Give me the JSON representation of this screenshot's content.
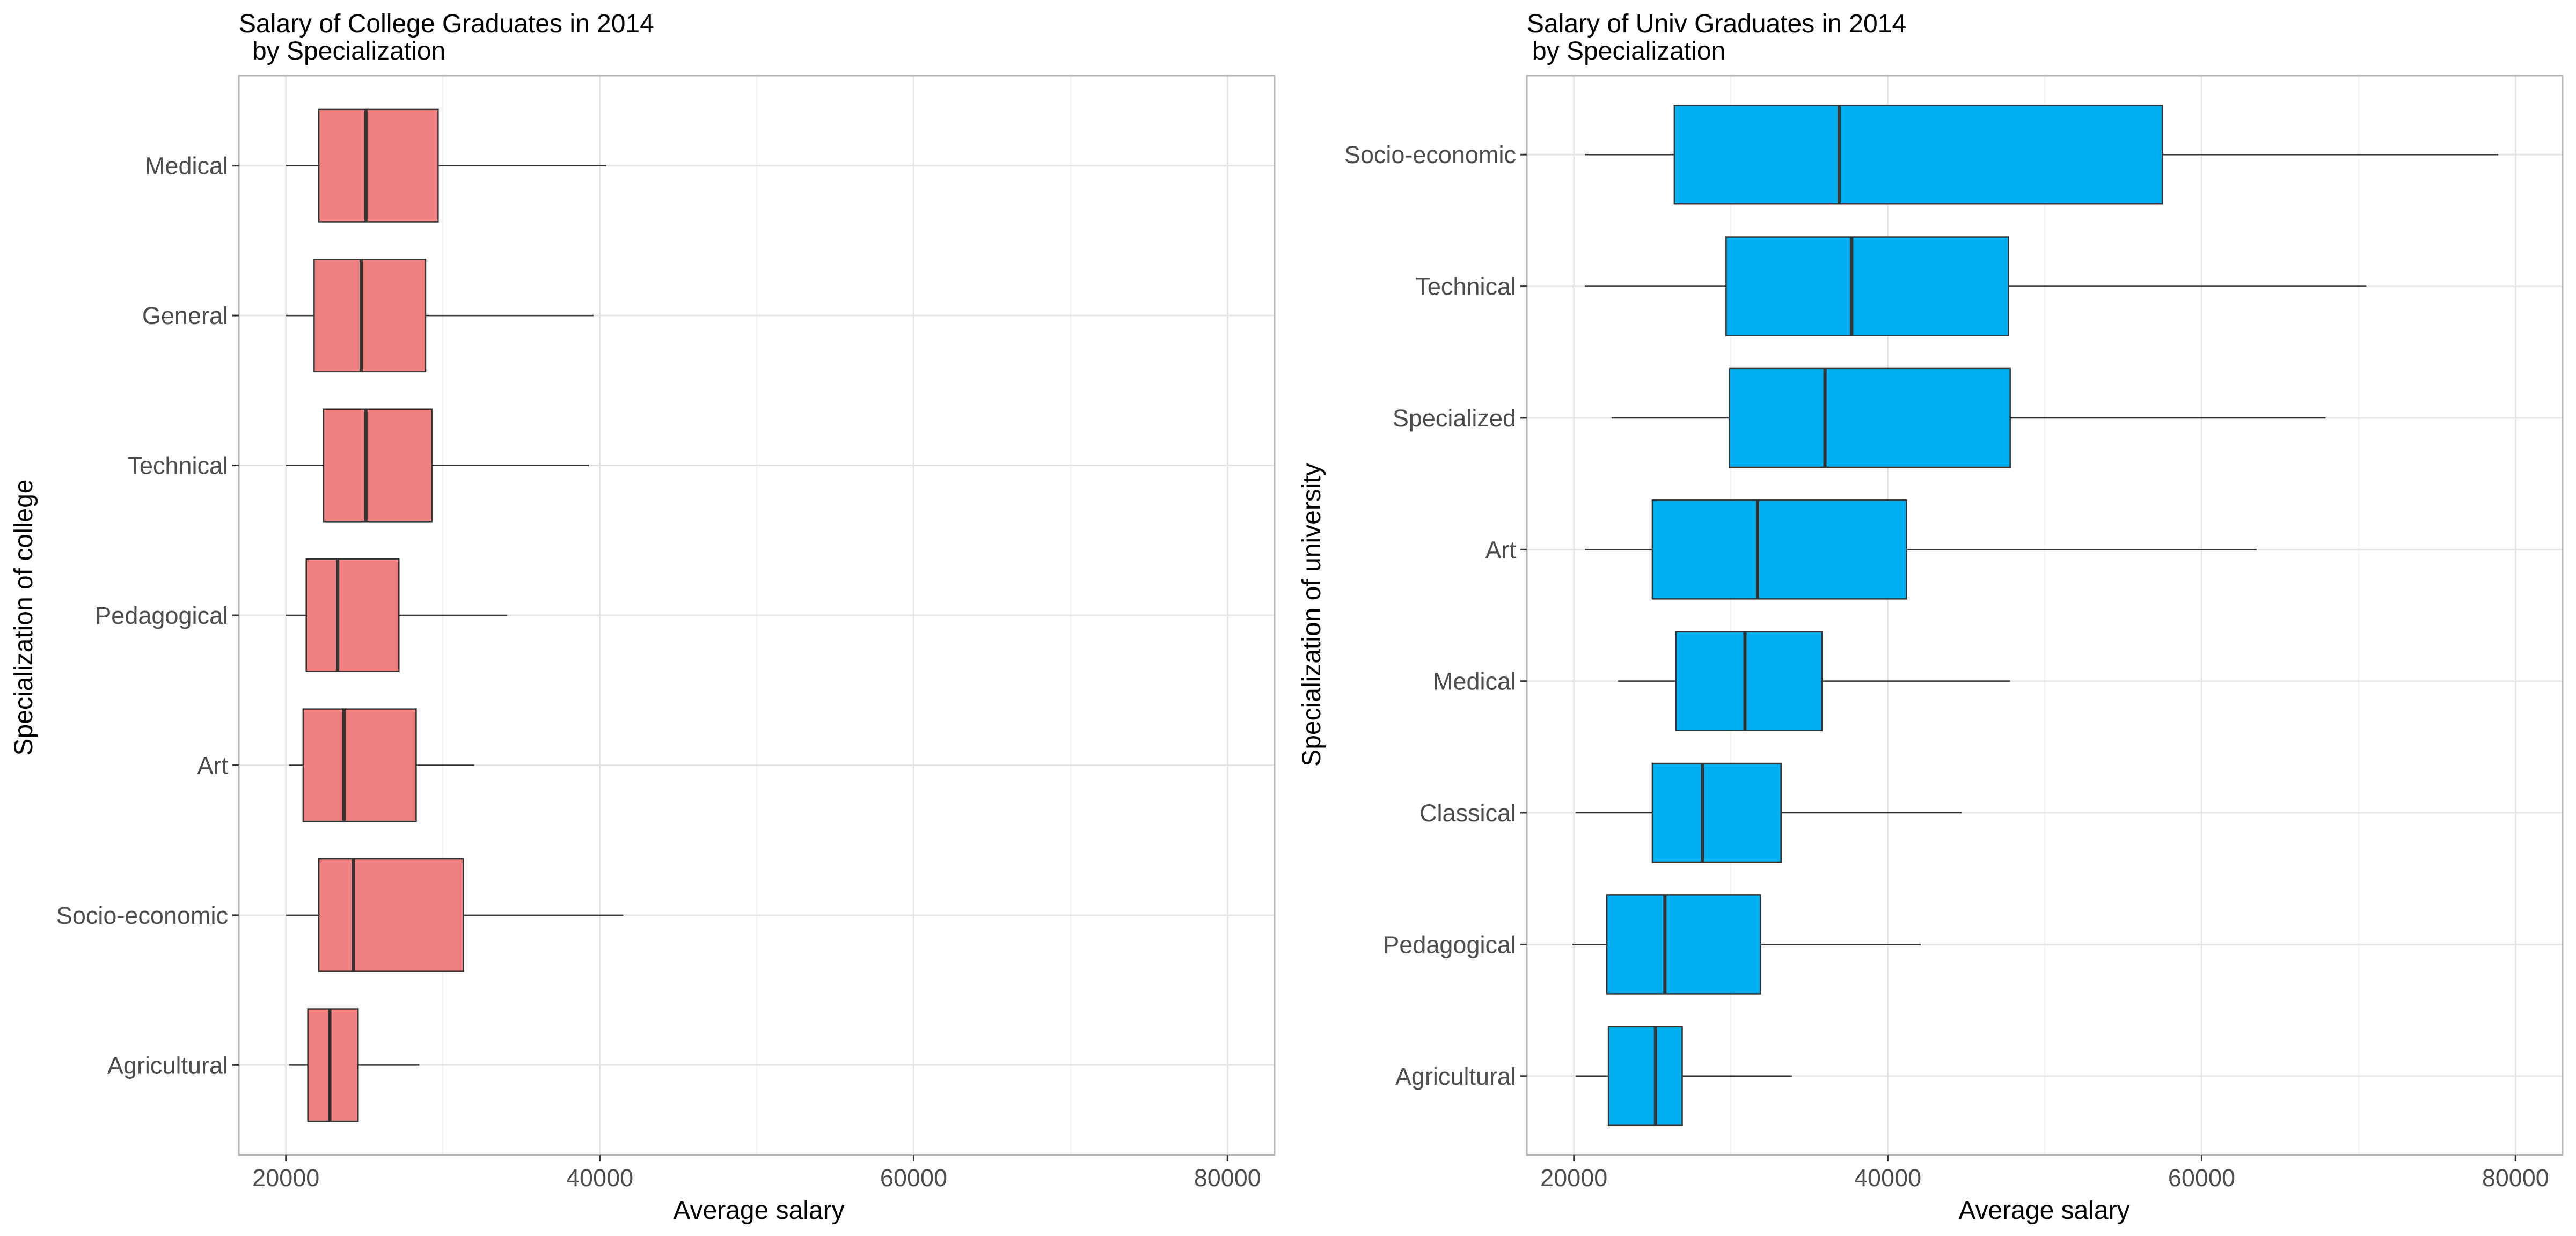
{
  "chart_data": [
    {
      "type": "boxplot",
      "orientation": "horizontal",
      "title": "Salary of College Graduates in 2014",
      "subtitle": "by Specialization",
      "xlabel": "Average salary",
      "ylabel": "Specialization of college",
      "xlim": [
        17000,
        83000
      ],
      "xticks": [
        20000,
        40000,
        60000,
        80000
      ],
      "xtick_labels": [
        "20000",
        "40000",
        "60000",
        "80000"
      ],
      "grid": true,
      "legend": "none",
      "fill_color": "#F08080",
      "categories": [
        "Medical",
        "General",
        "Technical",
        "Pedagogical",
        "Art",
        "Socio-economic",
        "Agricultural"
      ],
      "boxes": [
        {
          "category": "Medical",
          "min": 20000,
          "q1": 22100,
          "median": 25100,
          "q3": 29700,
          "max": 40400
        },
        {
          "category": "General",
          "min": 20000,
          "q1": 21800,
          "median": 24800,
          "q3": 28900,
          "max": 39600
        },
        {
          "category": "Technical",
          "min": 20000,
          "q1": 22400,
          "median": 25100,
          "q3": 29300,
          "max": 39300
        },
        {
          "category": "Pedagogical",
          "min": 20000,
          "q1": 21300,
          "median": 23300,
          "q3": 27200,
          "max": 34100
        },
        {
          "category": "Art",
          "min": 20200,
          "q1": 21100,
          "median": 23700,
          "q3": 28300,
          "max": 32000
        },
        {
          "category": "Socio-economic",
          "min": 20000,
          "q1": 22100,
          "median": 24300,
          "q3": 31300,
          "max": 41500
        },
        {
          "category": "Agricultural",
          "min": 20200,
          "q1": 21400,
          "median": 22800,
          "q3": 24600,
          "max": 28500
        }
      ]
    },
    {
      "type": "boxplot",
      "orientation": "horizontal",
      "title": "Salary of Univ Graduates in 2014",
      "subtitle": "by Specialization",
      "xlabel": "Average salary",
      "ylabel": "Specialization of university",
      "xlim": [
        17000,
        83000
      ],
      "xticks": [
        20000,
        40000,
        60000,
        80000
      ],
      "xtick_labels": [
        "20000",
        "40000",
        "60000",
        "80000"
      ],
      "grid": true,
      "legend": "none",
      "fill_color": "#00B0F0",
      "categories": [
        "Socio-economic",
        "Technical",
        "Specialized",
        "Art",
        "Medical",
        "Classical",
        "Pedagogical",
        "Agricultural"
      ],
      "boxes": [
        {
          "category": "Socio-economic",
          "min": 20700,
          "q1": 26400,
          "median": 36900,
          "q3": 57500,
          "max": 78900
        },
        {
          "category": "Technical",
          "min": 20700,
          "q1": 29700,
          "median": 37700,
          "q3": 47700,
          "max": 70500
        },
        {
          "category": "Specialized",
          "min": 22400,
          "q1": 29900,
          "median": 36000,
          "q3": 47800,
          "max": 67900
        },
        {
          "category": "Art",
          "min": 20700,
          "q1": 25000,
          "median": 31700,
          "q3": 41200,
          "max": 63500
        },
        {
          "category": "Medical",
          "min": 22800,
          "q1": 26500,
          "median": 30900,
          "q3": 35800,
          "max": 47800
        },
        {
          "category": "Classical",
          "min": 20100,
          "q1": 25000,
          "median": 28200,
          "q3": 33200,
          "max": 44700
        },
        {
          "category": "Pedagogical",
          "min": 19900,
          "q1": 22100,
          "median": 25800,
          "q3": 31900,
          "max": 42100
        },
        {
          "category": "Agricultural",
          "min": 20100,
          "q1": 22200,
          "median": 25200,
          "q3": 26900,
          "max": 33900
        }
      ]
    }
  ]
}
